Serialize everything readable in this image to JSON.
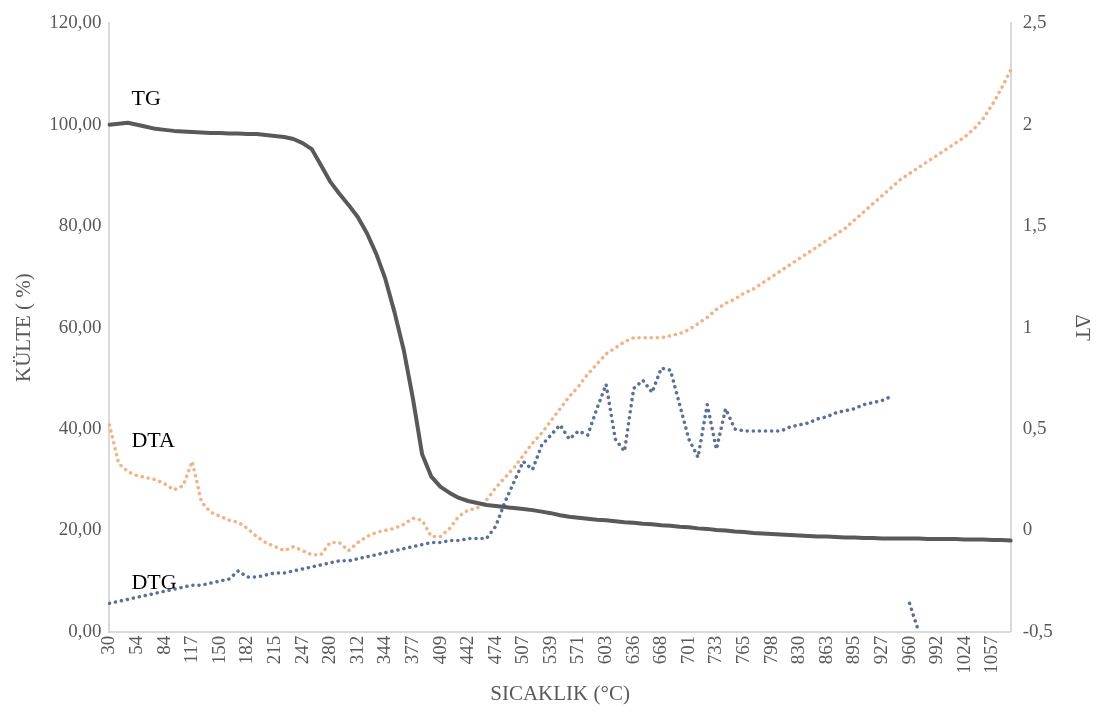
{
  "chart_data": {
    "type": "line",
    "xlabel": "SICAKLIK (°C)",
    "ylabel": "KÜLTE ( %)",
    "y2label": "ΔT",
    "categories": [
      "30",
      null,
      null,
      "54",
      null,
      null,
      "84",
      null,
      null,
      "117",
      null,
      null,
      "150",
      null,
      null,
      "182",
      null,
      null,
      "215",
      null,
      null,
      "247",
      null,
      null,
      "280",
      null,
      null,
      "312",
      null,
      null,
      "344",
      null,
      null,
      "377",
      null,
      null,
      "409",
      null,
      null,
      "442",
      null,
      null,
      "474",
      null,
      null,
      "507",
      null,
      null,
      "539",
      null,
      null,
      "571",
      null,
      null,
      "603",
      null,
      null,
      "636",
      null,
      null,
      "668",
      null,
      null,
      "701",
      null,
      null,
      "733",
      null,
      null,
      "765",
      null,
      null,
      "798",
      null,
      null,
      "830",
      null,
      null,
      "863",
      null,
      null,
      "895",
      null,
      null,
      "927",
      null,
      null,
      "960",
      null,
      null,
      "992",
      null,
      null,
      "1024",
      null,
      null,
      "1057",
      null,
      null
    ],
    "ylim": [
      0,
      120
    ],
    "yticks": [
      {
        "value": 0,
        "label": "0,00"
      },
      {
        "value": 20,
        "label": "20,00"
      },
      {
        "value": 40,
        "label": "40,00"
      },
      {
        "value": 60,
        "label": "60,00"
      },
      {
        "value": 80,
        "label": "80,00"
      },
      {
        "value": 100,
        "label": "100,00"
      },
      {
        "value": 120,
        "label": "120,00"
      }
    ],
    "y2lim": [
      -0.5,
      2.5
    ],
    "y2ticks": [
      {
        "value": -0.5,
        "label": "-0,5"
      },
      0,
      {
        "value": 0.5,
        "label": "0,5"
      },
      1,
      {
        "value": 1.5,
        "label": "1,5"
      },
      2,
      {
        "value": 2.5,
        "label": "2,5"
      }
    ],
    "grid": false,
    "legend": false,
    "marker": "none",
    "series": [
      {
        "name": "TG",
        "color": "#595959",
        "line_style": "solid",
        "values": [
          100.0,
          100.2,
          100.4,
          100.0,
          99.6,
          99.2,
          99.0,
          98.8,
          98.7,
          98.6,
          98.5,
          98.4,
          98.4,
          98.3,
          98.3,
          98.2,
          98.2,
          98.0,
          97.8,
          97.6,
          97.2,
          96.4,
          95.2,
          92.0,
          88.8,
          86.4,
          84.2,
          81.8,
          78.6,
          74.6,
          69.6,
          63.0,
          55.6,
          46.0,
          35.0,
          30.6,
          28.6,
          27.4,
          26.4,
          25.8,
          25.4,
          25.0,
          24.8,
          24.6,
          24.4,
          24.2,
          24.0,
          23.7,
          23.4,
          23.0,
          22.7,
          22.5,
          22.3,
          22.1,
          22.0,
          21.8,
          21.6,
          21.5,
          21.3,
          21.2,
          21.0,
          20.9,
          20.7,
          20.6,
          20.4,
          20.3,
          20.1,
          20.0,
          19.8,
          19.7,
          19.5,
          19.4,
          19.3,
          19.2,
          19.1,
          19.0,
          18.9,
          18.8,
          18.8,
          18.7,
          18.6,
          18.6,
          18.5,
          18.5,
          18.4,
          18.4,
          18.4,
          18.4,
          18.4,
          18.3,
          18.3,
          18.3,
          18.3,
          18.2,
          18.2,
          18.2,
          18.1,
          18.1,
          18.0
        ]
      },
      {
        "name": "DTA",
        "color": "#f4b183",
        "line_style": "dotted",
        "axis": "y2",
        "values": [
          0.52,
          0.33,
          0.29,
          0.27,
          0.26,
          0.25,
          0.23,
          0.2,
          0.22,
          0.34,
          0.14,
          0.09,
          0.07,
          0.05,
          0.04,
          0.01,
          -0.03,
          -0.06,
          -0.08,
          -0.1,
          -0.08,
          -0.1,
          -0.12,
          -0.12,
          -0.06,
          -0.06,
          -0.1,
          -0.06,
          -0.03,
          -0.01,
          0.0,
          0.01,
          0.03,
          0.06,
          0.05,
          -0.03,
          -0.03,
          0.01,
          0.07,
          0.1,
          0.11,
          0.15,
          0.21,
          0.26,
          0.31,
          0.37,
          0.43,
          0.48,
          0.54,
          0.6,
          0.66,
          0.71,
          0.77,
          0.82,
          0.87,
          0.9,
          0.93,
          0.95,
          0.95,
          0.95,
          0.95,
          0.96,
          0.97,
          0.99,
          1.02,
          1.05,
          1.09,
          1.12,
          1.14,
          1.17,
          1.19,
          1.22,
          1.25,
          1.28,
          1.31,
          1.34,
          1.37,
          1.4,
          1.43,
          1.46,
          1.49,
          1.53,
          1.57,
          1.61,
          1.65,
          1.69,
          1.73,
          1.76,
          1.79,
          1.82,
          1.85,
          1.88,
          1.91,
          1.94,
          1.98,
          2.03,
          2.1,
          2.18,
          2.27
        ]
      },
      {
        "name": "DTG",
        "color": "#5a6f9e",
        "line_style": "dotted",
        "axis": "y2",
        "values": [
          -0.36,
          -0.35,
          -0.34,
          -0.33,
          -0.32,
          -0.31,
          -0.3,
          -0.29,
          -0.28,
          -0.27,
          -0.27,
          -0.26,
          -0.25,
          -0.24,
          -0.2,
          -0.23,
          -0.23,
          -0.22,
          -0.21,
          -0.21,
          -0.2,
          -0.19,
          -0.18,
          -0.17,
          -0.16,
          -0.15,
          -0.15,
          -0.14,
          -0.13,
          -0.12,
          -0.11,
          -0.1,
          -0.09,
          -0.08,
          -0.07,
          -0.06,
          -0.06,
          -0.05,
          -0.05,
          -0.04,
          -0.04,
          -0.04,
          0.02,
          0.14,
          0.24,
          0.34,
          0.3,
          0.42,
          0.47,
          0.52,
          0.45,
          0.49,
          0.47,
          0.6,
          0.72,
          0.45,
          0.39,
          0.7,
          0.74,
          0.68,
          0.8,
          0.79,
          0.62,
          0.45,
          0.36,
          0.62,
          0.4,
          0.6,
          0.5,
          0.49,
          0.49,
          0.49,
          0.49,
          0.49,
          0.51,
          0.52,
          0.53,
          0.55,
          0.56,
          0.58,
          0.59,
          0.6,
          0.62,
          0.63,
          0.64,
          0.66,
          null,
          -0.36,
          -0.5,
          null,
          null,
          null,
          null,
          null,
          null,
          null,
          null,
          null,
          null
        ]
      }
    ]
  }
}
